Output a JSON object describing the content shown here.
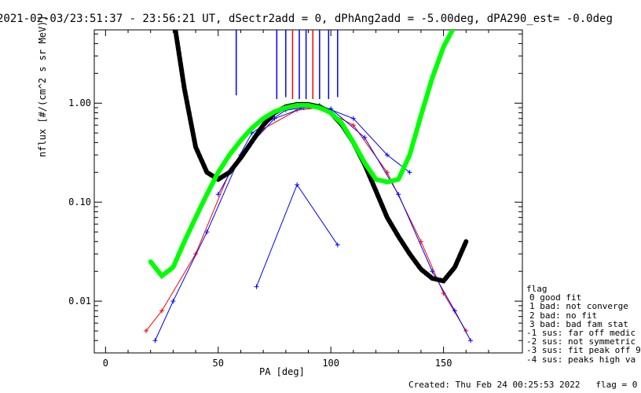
{
  "title": "2021-02-03/23:51:37 - 23:56:21 UT, dSectr2add = 0, dPhAng2add = -5.00deg, dPA290_est=  -0.0deg",
  "footer": {
    "created": "Created: Thu Feb 24 00:25:53 2022",
    "flag": "flag = 0"
  },
  "legend": {
    "title": "flag",
    "items": [
      "0 good fit",
      "1 bad: not converge",
      "2 bad: no fit",
      "3 bad: bad fam stat",
      "-1 sus: far off medic",
      "-2 sus: not symmetric",
      "-3 sus: fit peak off 9",
      "-4 sus: peaks high va"
    ]
  },
  "colors": {
    "red": "#ff0000",
    "blue": "#0000ff",
    "black": "#000000",
    "green": "#00ff00"
  },
  "chart_data": {
    "type": "line",
    "xlabel": "PA [deg]",
    "ylabel": "nflux [#/(cm^2 s sr MeV)]",
    "xlim": [
      -5,
      185
    ],
    "ylim": [
      0.003,
      5.5
    ],
    "yscale": "log",
    "xticks": [
      0,
      50,
      100,
      150
    ],
    "yticks": [
      0.01,
      0.1,
      1.0
    ],
    "ytick_labels": [
      "0.01",
      "0.10",
      "1.00"
    ],
    "fit_curves": [
      {
        "name": "black-fit",
        "color": "black",
        "x": [
          31,
          35,
          40,
          45,
          50,
          55,
          60,
          65,
          70,
          75,
          80,
          85,
          90,
          95,
          100,
          105,
          110,
          115,
          120,
          125,
          130,
          135,
          140,
          145,
          150,
          155,
          160
        ],
        "y": [
          5.5,
          1.4,
          0.36,
          0.2,
          0.17,
          0.2,
          0.28,
          0.41,
          0.6,
          0.8,
          0.92,
          0.97,
          0.97,
          0.92,
          0.8,
          0.6,
          0.4,
          0.24,
          0.13,
          0.07,
          0.045,
          0.03,
          0.021,
          0.017,
          0.016,
          0.022,
          0.04
        ]
      },
      {
        "name": "green-fit",
        "color": "green",
        "x": [
          20,
          25,
          30,
          35,
          40,
          45,
          50,
          55,
          60,
          65,
          70,
          75,
          80,
          85,
          90,
          95,
          100,
          105,
          110,
          115,
          120,
          125,
          130,
          135,
          140,
          145,
          150,
          154
        ],
        "y": [
          0.025,
          0.018,
          0.022,
          0.04,
          0.07,
          0.12,
          0.2,
          0.3,
          0.42,
          0.56,
          0.7,
          0.82,
          0.9,
          0.95,
          0.95,
          0.9,
          0.8,
          0.62,
          0.4,
          0.25,
          0.17,
          0.16,
          0.17,
          0.3,
          0.75,
          1.8,
          3.7,
          5.5
        ]
      }
    ],
    "sample_traces": [
      {
        "color": "red",
        "x": [
          18,
          25,
          40,
          55,
          70,
          85,
          95,
          110,
          125,
          140,
          150,
          160
        ],
        "y": [
          0.005,
          0.008,
          0.03,
          0.2,
          0.55,
          0.85,
          0.9,
          0.6,
          0.2,
          0.04,
          0.012,
          0.005
        ]
      },
      {
        "color": "blue",
        "x": [
          22,
          30,
          45,
          60,
          75,
          88,
          100,
          115,
          130,
          145,
          155,
          162
        ],
        "y": [
          0.004,
          0.01,
          0.05,
          0.3,
          0.7,
          0.9,
          0.88,
          0.45,
          0.12,
          0.02,
          0.008,
          0.004
        ]
      },
      {
        "color": "blue",
        "x": [
          67,
          85,
          103
        ],
        "y": [
          0.014,
          0.15,
          0.037
        ]
      },
      {
        "color": "blue",
        "x": [
          50,
          65,
          80,
          95,
          110,
          125,
          135
        ],
        "y": [
          0.12,
          0.5,
          0.85,
          0.95,
          0.7,
          0.3,
          0.2
        ]
      }
    ],
    "uncertainty_bars": [
      {
        "color": "blue",
        "x": 58,
        "y_low": 1.2,
        "y_high": 5.5
      },
      {
        "color": "blue",
        "x": 76,
        "y_low": 1.1,
        "y_high": 5.5
      },
      {
        "color": "blue",
        "x": 80,
        "y_low": 1.15,
        "y_high": 5.5
      },
      {
        "color": "red",
        "x": 83,
        "y_low": 1.1,
        "y_high": 5.5
      },
      {
        "color": "blue",
        "x": 86,
        "y_low": 1.1,
        "y_high": 5.5
      },
      {
        "color": "blue",
        "x": 89,
        "y_low": 1.1,
        "y_high": 5.5
      },
      {
        "color": "red",
        "x": 92,
        "y_low": 1.1,
        "y_high": 5.5
      },
      {
        "color": "blue",
        "x": 95,
        "y_low": 1.1,
        "y_high": 5.5
      },
      {
        "color": "blue",
        "x": 99,
        "y_low": 1.1,
        "y_high": 5.5
      },
      {
        "color": "blue",
        "x": 103,
        "y_low": 1.15,
        "y_high": 5.5
      }
    ]
  }
}
